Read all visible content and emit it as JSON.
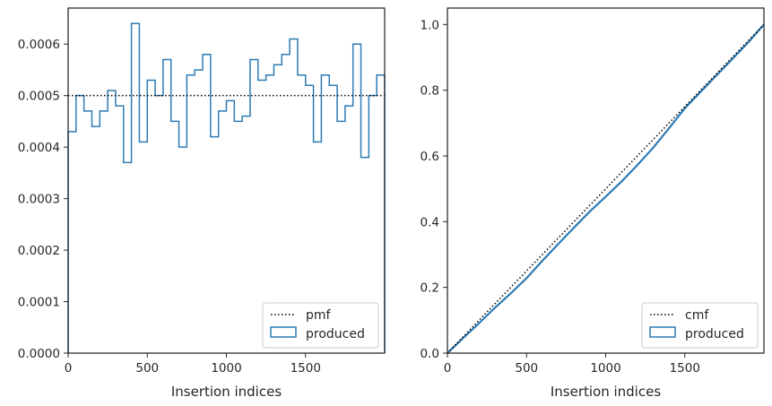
{
  "chart_data": [
    {
      "type": "step",
      "title": "",
      "xlabel": "Insertion indices",
      "ylabel": "",
      "xlim": [
        0,
        2000
      ],
      "ylim": [
        0,
        0.00067
      ],
      "xticks": [
        0,
        500,
        1000,
        1500
      ],
      "xtick_labels": [
        "0",
        "500",
        "1000",
        "1500"
      ],
      "yticks": [
        0,
        0.0001,
        0.0002,
        0.0003,
        0.0004,
        0.0005,
        0.0006
      ],
      "ytick_labels": [
        "0.0000",
        "0.0001",
        "0.0002",
        "0.0003",
        "0.0004",
        "0.0005",
        "0.0006"
      ],
      "grid": false,
      "legend_position": "lower-right",
      "series": [
        {
          "name": "pmf",
          "style": "dotted",
          "color": "#000000",
          "x": [
            0,
            2000
          ],
          "y": [
            0.0005,
            0.0005
          ]
        },
        {
          "name": "produced",
          "style": "step",
          "color": "#2d7bb4",
          "bin_width": 50,
          "x_start": 0,
          "values": [
            0.00043,
            0.0005,
            0.00047,
            0.00044,
            0.00047,
            0.00051,
            0.00048,
            0.00037,
            0.00064,
            0.00041,
            0.00053,
            0.0005,
            0.00057,
            0.00045,
            0.0004,
            0.00054,
            0.00055,
            0.00058,
            0.00042,
            0.00047,
            0.00049,
            0.00045,
            0.00046,
            0.00057,
            0.00053,
            0.00054,
            0.00056,
            0.00058,
            0.00061,
            0.00054,
            0.00052,
            0.00041,
            0.00054,
            0.00052,
            0.00045,
            0.00048,
            0.0006,
            0.00038,
            0.0005,
            0.00054
          ]
        }
      ]
    },
    {
      "type": "step",
      "title": "",
      "xlabel": "Insertion indices",
      "ylabel": "",
      "xlim": [
        0,
        2000
      ],
      "ylim": [
        0,
        1.05
      ],
      "xticks": [
        0,
        500,
        1000,
        1500
      ],
      "xtick_labels": [
        "0",
        "500",
        "1000",
        "1500"
      ],
      "yticks": [
        0,
        0.2,
        0.4,
        0.6,
        0.8,
        1.0
      ],
      "ytick_labels": [
        "0.0",
        "0.2",
        "0.4",
        "0.6",
        "0.8",
        "1.0"
      ],
      "grid": false,
      "legend_position": "lower-right",
      "series": [
        {
          "name": "cmf",
          "style": "dotted",
          "color": "#000000",
          "x": [
            0,
            2000
          ],
          "y": [
            0,
            1.0
          ]
        },
        {
          "name": "produced",
          "style": "line",
          "color": "#2d7bb4",
          "x": [
            0,
            100,
            200,
            300,
            400,
            500,
            600,
            700,
            800,
            900,
            1000,
            1100,
            1200,
            1300,
            1400,
            1500,
            1600,
            1700,
            1800,
            1900,
            2000
          ],
          "y": [
            0,
            0.046,
            0.091,
            0.138,
            0.182,
            0.228,
            0.281,
            0.332,
            0.382,
            0.431,
            0.476,
            0.522,
            0.572,
            0.625,
            0.684,
            0.745,
            0.795,
            0.845,
            0.895,
            0.945,
            1.0
          ]
        }
      ]
    }
  ]
}
